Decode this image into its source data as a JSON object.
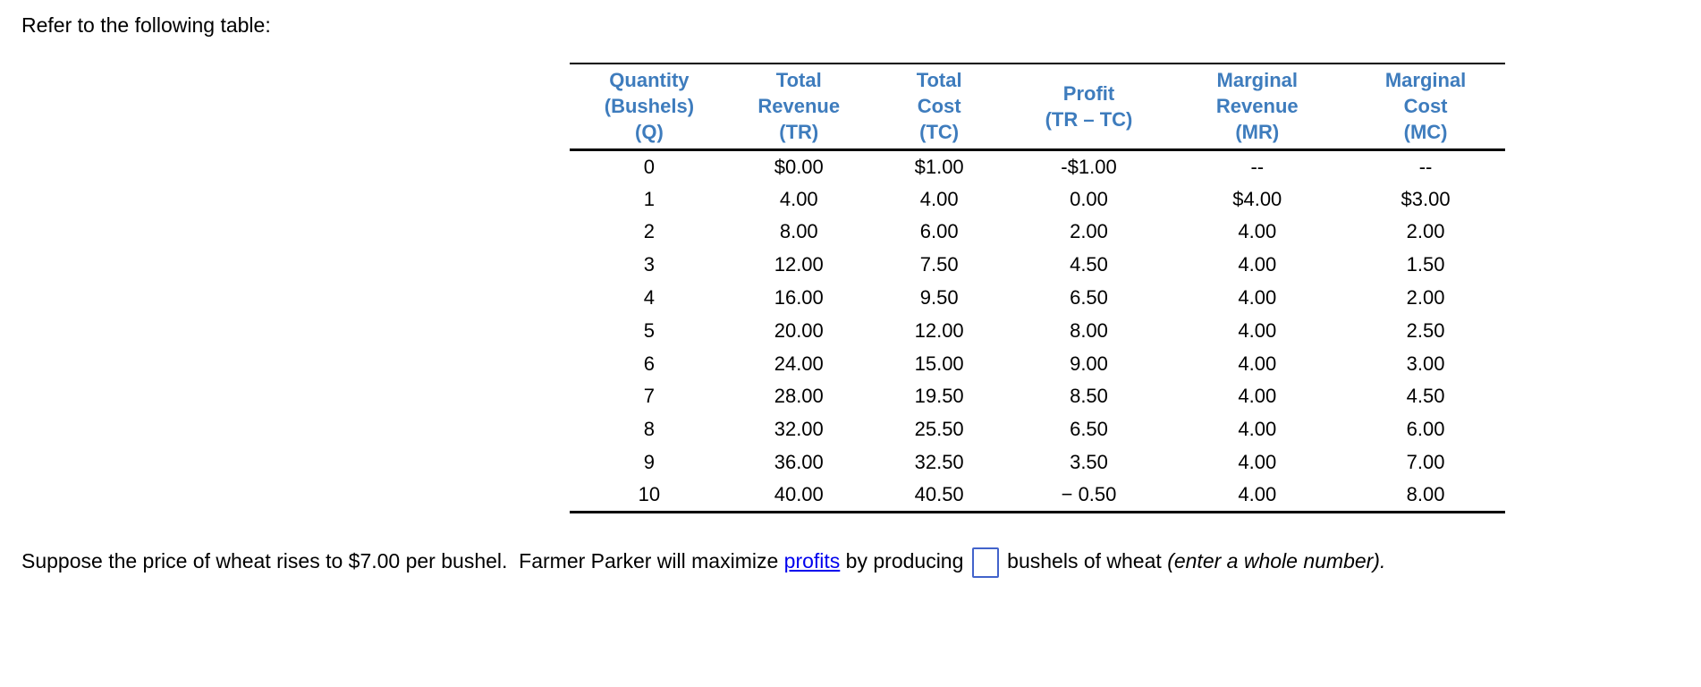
{
  "page": {
    "intro": "Refer to the following table:"
  },
  "colors": {
    "header_text": "#3E7CBD",
    "link": "#0000EE",
    "input_border": "#4263CB",
    "rule": "#000000"
  },
  "table": {
    "headers": [
      "Quantity\n(Bushels)\n(Q)",
      "Total\nRevenue\n(TR)",
      "Total\nCost\n(TC)",
      "Profit\n(TR – TC)",
      "Marginal\nRevenue\n(MR)",
      "Marginal\nCost\n(MC)"
    ],
    "rows": [
      [
        "0",
        "$0.00",
        "$1.00",
        "-$1.00",
        "--",
        "--"
      ],
      [
        "1",
        "4.00",
        "4.00",
        "0.00",
        "$4.00",
        "$3.00"
      ],
      [
        "2",
        "8.00",
        "6.00",
        "2.00",
        "4.00",
        "2.00"
      ],
      [
        "3",
        "12.00",
        "7.50",
        "4.50",
        "4.00",
        "1.50"
      ],
      [
        "4",
        "16.00",
        "9.50",
        "6.50",
        "4.00",
        "2.00"
      ],
      [
        "5",
        "20.00",
        "12.00",
        "8.00",
        "4.00",
        "2.50"
      ],
      [
        "6",
        "24.00",
        "15.00",
        "9.00",
        "4.00",
        "3.00"
      ],
      [
        "7",
        "28.00",
        "19.50",
        "8.50",
        "4.00",
        "4.50"
      ],
      [
        "8",
        "32.00",
        "25.50",
        "6.50",
        "4.00",
        "6.00"
      ],
      [
        "9",
        "36.00",
        "32.50",
        "3.50",
        "4.00",
        "7.00"
      ],
      [
        "10",
        "40.00",
        "40.50",
        "− 0.50",
        "4.00",
        "8.00"
      ]
    ]
  },
  "question": {
    "part1": "Suppose the price of wheat rises to $7.00 per bushel.  Farmer Parker will maximize ",
    "link_text": "profits",
    "part2": " by producing",
    "answer_value": "",
    "part3": "bushels of wheat ",
    "note_italic": "(enter a whole number)."
  }
}
